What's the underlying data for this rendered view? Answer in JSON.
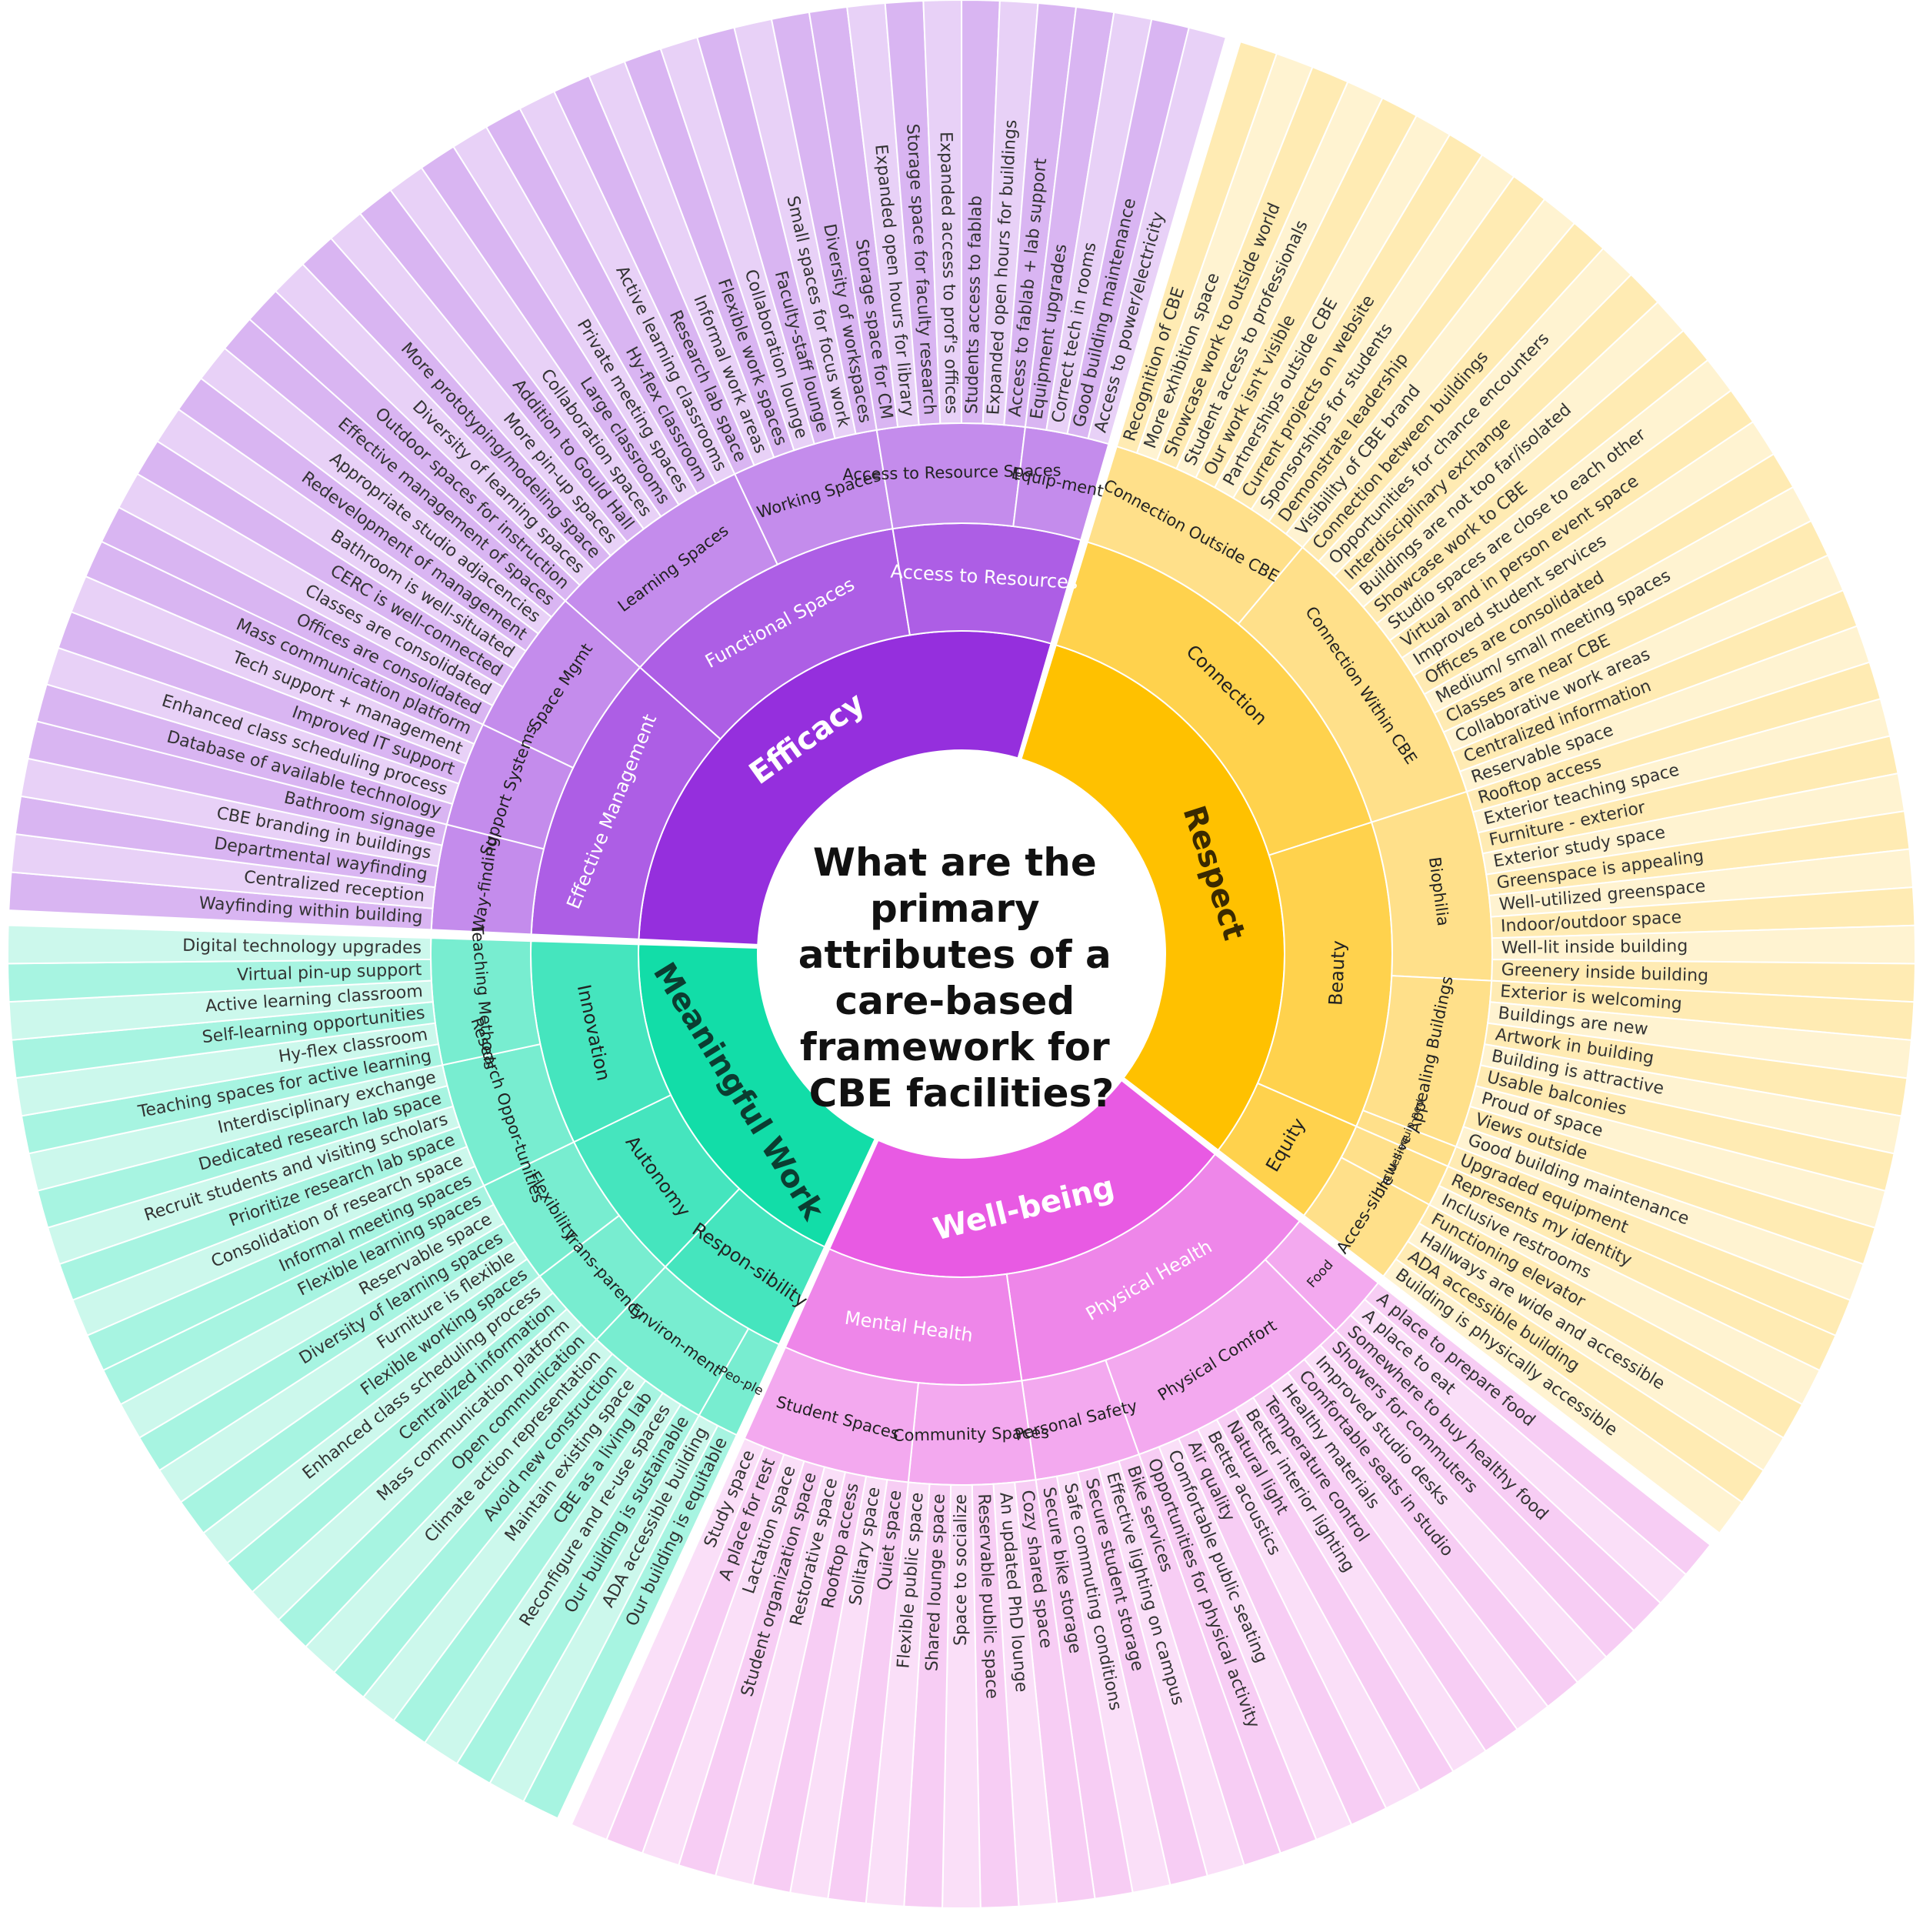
{
  "center_title_lines": [
    "What are the",
    "primary",
    "attributes of a",
    "care-based",
    "framework for",
    "CBE facilities?"
  ],
  "sunburst": [
    {
      "label": "Respect",
      "color": "#FFC100",
      "c2": "#FFD24D",
      "c3": "#FFE08A",
      "c4": "#FFEBB3",
      "c5": "#FFF3D1",
      "children": [
        {
          "label": "Connection",
          "children": [
            {
              "label": "Connection Outside CBE",
              "leaves": [
                "Recognition of CBE",
                "More exhibition space",
                "Showcase work to outside world",
                "Student access to professionals",
                "Our work isn't visible",
                "Partnerships outside CBE",
                "Current projects on website",
                "Sponsorships for students",
                "Demonstrate leadership",
                "Visibility of CBE brand"
              ]
            },
            {
              "label": "Connection Within CBE",
              "leaves": [
                "Connection between buildings",
                "Opportunities for chance encounters",
                "Interdisciplinary exchange",
                "Buildings are not too far/isolated",
                "Showcase work to CBE",
                "Studio spaces are close to each other",
                "Virtual and in person event space",
                "Improved student services",
                "Offices are consolidated",
                "Medium/ small meeting spaces",
                "Classes are near CBE",
                "Collaborative work areas",
                "Centralized information",
                "Reservable space"
              ]
            }
          ]
        },
        {
          "label": "Beauty",
          "children": [
            {
              "label": "Biophilia",
              "leaves": [
                "Rooftop access",
                "Exterior teaching space",
                "Furniture - exterior",
                "Exterior study space",
                "Greenspace is appealing",
                "Well-utilized greenspace",
                "Indoor/outdoor space",
                "Well-lit inside building",
                "Greenery inside building"
              ]
            },
            {
              "label": "Appealing Buildings",
              "leaves": [
                "Exterior is welcoming",
                "Buildings are new",
                "Artwork in building",
                "Building is attractive",
                "Usable balconies",
                "Proud of space",
                "Views outside",
                "Good building maintenance"
              ]
            },
            {
              "label": "Well-equip-ped",
              "leaves": [
                "Upgraded equipment"
              ]
            }
          ]
        },
        {
          "label": "Equity",
          "children": [
            {
              "label": "Inclu-sive",
              "leaves": [
                "Represents my identity",
                "Inclusive restrooms"
              ]
            },
            {
              "label": "Acces-sible",
              "leaves": [
                "Functioning elevator",
                "Hallways are wide and accessible",
                "ADA accessible building",
                "Building is physically accessible"
              ]
            }
          ]
        }
      ]
    },
    {
      "label": "Well-being",
      "color": "#E85AE3",
      "c2": "#EE86E9",
      "c3": "#F3A9EF",
      "c4": "#F7CDF4",
      "c5": "#FADFF8",
      "children": [
        {
          "label": "Physical Health",
          "children": [
            {
              "label": "Food",
              "leaves": [
                "A place to prepare food",
                "A place to eat",
                "Somewhere to buy healthy food"
              ]
            },
            {
              "label": "Physical Comfort",
              "leaves": [
                "Showers for commuters",
                "Improved studio desks",
                "Comfortable seats in studio",
                "Healthy materials",
                "Temperature control",
                "Better interior lighting",
                "Natural light",
                "Better acoustics",
                "Air quality",
                "Comfortable public seating",
                "Opportunities for physical activity"
              ]
            },
            {
              "label": "Personal Safety",
              "leaves": [
                "Bike services",
                "Effective lighting on campus",
                "Secure student storage",
                "Safe commuting conditions",
                "Secure bike storage"
              ]
            }
          ]
        },
        {
          "label": "Mental Health",
          "children": [
            {
              "label": "Community Spaces",
              "leaves": [
                "Cozy shared space",
                "An updated PhD lounge",
                "Reservable public space",
                "Space to socialize",
                "Shared lounge space",
                "Flexible public space"
              ]
            },
            {
              "label": "Student Spaces",
              "leaves": [
                "Quiet space",
                "Solitary space",
                "Rooftop access",
                "Restorative space",
                "Student organization space",
                "Lactation space",
                "A place for rest",
                "Study space"
              ]
            }
          ]
        }
      ]
    },
    {
      "label": "Meaningful Work",
      "color": "#12DDA8",
      "c2": "#45E5BE",
      "c3": "#78EDD0",
      "c4": "#A7F4E1",
      "c5": "#CCF8EC",
      "children": [
        {
          "label": "Respon-sibility",
          "children": [
            {
              "label": "Peo-ple",
              "leaves": [
                "Our building is equitable",
                "ADA accessible building"
              ]
            },
            {
              "label": "Environ-ment",
              "leaves": [
                "Our building is sustainable",
                "Reconfigure and re-use spaces",
                "CBE as a living lab",
                "Maintain existing space",
                "Avoid new construction",
                "Climate action representation"
              ]
            }
          ]
        },
        {
          "label": "Autonomy",
          "children": [
            {
              "label": "Trans-parency",
              "leaves": [
                "Open communication",
                "Mass communication platform",
                "Centralized information",
                "Enhanced class scheduling process"
              ]
            },
            {
              "label": "Flexibility",
              "leaves": [
                "Flexible working spaces",
                "Furniture is flexible",
                "Diversity of learning spaces",
                "Reservable space",
                "Flexible learning spaces"
              ]
            }
          ]
        },
        {
          "label": "Innovation",
          "children": [
            {
              "label": "Research Oppor-tunities",
              "leaves": [
                "Informal meeting spaces",
                "Consolidation of research space",
                "Prioritize research lab space",
                "Recruit students and visiting scholars",
                "Dedicated research lab space",
                "Interdisciplinary exchange"
              ]
            },
            {
              "label": "Teaching Methods",
              "leaves": [
                "Teaching spaces for active learning",
                "Hy-flex classroom",
                "Self-learning opportunities",
                "Active learning classroom",
                "Virtual pin-up support",
                "Digital technology upgrades"
              ]
            }
          ]
        }
      ]
    },
    {
      "label": "Efficacy",
      "color": "#952FDD",
      "c2": "#AD5EE5",
      "c3": "#C48CEC",
      "c4": "#D9B5F2",
      "c5": "#E8D1F7",
      "children": [
        {
          "label": "Effective Management",
          "children": [
            {
              "label": "Way-finding",
              "leaves": [
                "Wayfinding within building",
                "Centralized reception",
                "Departmental wayfinding",
                "CBE branding in buildings",
                "Bathroom signage"
              ]
            },
            {
              "label": "Support Systems",
              "leaves": [
                "Database of available technology",
                "Enhanced class scheduling process",
                "Improved IT support",
                "Tech support + management",
                "Mass communication platform"
              ]
            },
            {
              "label": "Space Mgmt",
              "leaves": [
                "Offices are consolidated",
                "Classes are consolidated",
                "CERC is well-connected",
                "Bathroom is well-situated",
                "Redevelopment of management",
                "Appropriate studio adjacencies",
                "Effective management of spaces"
              ]
            }
          ]
        },
        {
          "label": "Functional Spaces",
          "children": [
            {
              "label": "Learning Spaces",
              "leaves": [
                "Outdoor spaces for instruction",
                "Diversity of learning spaces",
                "More prototyping/modeling space",
                "More pin-up spaces",
                "Addition to Gould Hall",
                "Collaboration spaces",
                "Large classrooms",
                "Private meeting spaces",
                "Hy-flex classroom",
                "Active learning classrooms"
              ]
            },
            {
              "label": "Working Spaces",
              "leaves": [
                "Research lab space",
                "Informal work areas",
                "Flexible work spaces",
                "Collaboration lounge",
                "Faculty-staff lounge",
                "Small spaces for focus work",
                "Diversity of workspaces"
              ]
            }
          ]
        },
        {
          "label": "Access to Resources",
          "children": [
            {
              "label": "Access to Resource Spaces",
              "leaves": [
                "Storage space for CM",
                "Expanded open hours for library",
                "Storage space for faculty research",
                "Expanded access to prof's offices",
                "Students access to fablab",
                "Expanded open hours for buildings",
                "Access to fablab + lab support"
              ]
            },
            {
              "label": "Equip-ment",
              "leaves": [
                "Equipment upgrades",
                "Correct tech in rooms",
                "Good building maintenance",
                "Access to power/electricity"
              ]
            }
          ]
        }
      ]
    }
  ]
}
